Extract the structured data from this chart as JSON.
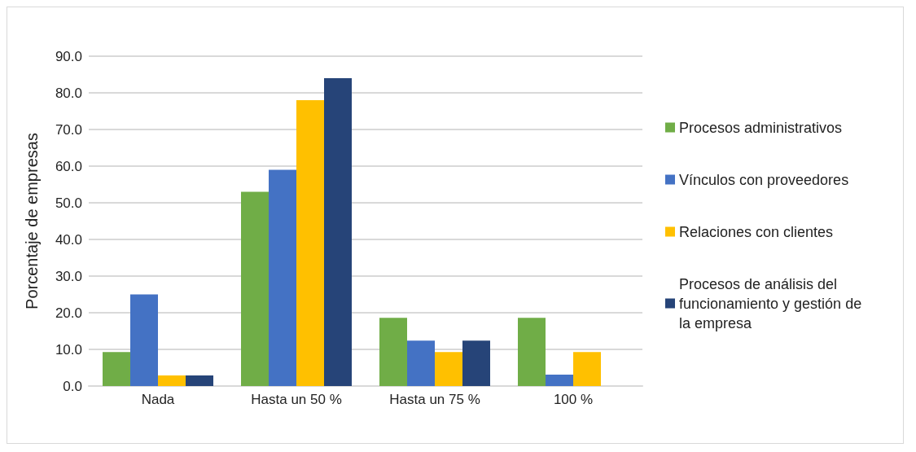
{
  "chart_data": {
    "type": "bar",
    "ylabel": "Porcentaje de empresas",
    "categories": [
      "Nada",
      "Hasta un 50 %",
      "Hasta un 75 %",
      "100 %"
    ],
    "series": [
      {
        "name": "Procesos administrativos",
        "color": "#70ad47",
        "values": [
          9.3,
          53.0,
          18.6,
          18.6
        ]
      },
      {
        "name": "Vínculos con proveedores",
        "color": "#4472c4",
        "values": [
          25.0,
          59.0,
          12.4,
          3.1
        ]
      },
      {
        "name": "Relaciones con clientes",
        "color": "#ffc000",
        "values": [
          2.9,
          78.0,
          9.3,
          9.3
        ]
      },
      {
        "name": "Procesos de análisis del funcionamiento y gestión de la empresa",
        "color": "#264478",
        "values": [
          2.9,
          84.0,
          12.4,
          0
        ]
      }
    ],
    "ylim": [
      0,
      90
    ],
    "yticks": [
      {
        "value": 0,
        "label": "0.0"
      },
      {
        "value": 10,
        "label": "10.0"
      },
      {
        "value": 20,
        "label": "20.0"
      },
      {
        "value": 30,
        "label": "30.0"
      },
      {
        "value": 40,
        "label": "40.0"
      },
      {
        "value": 50,
        "label": "50.0"
      },
      {
        "value": 60,
        "label": "60.0"
      },
      {
        "value": 70,
        "label": "70.0"
      },
      {
        "value": 80,
        "label": "80.0"
      },
      {
        "value": 90,
        "label": "90.0"
      }
    ],
    "grid": "y",
    "legend": "right"
  }
}
